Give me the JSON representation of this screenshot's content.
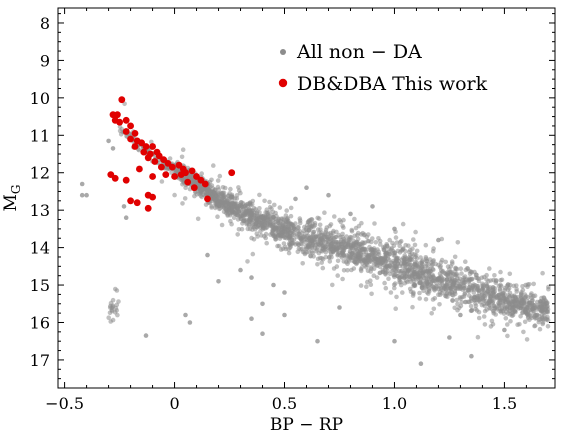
{
  "chart_data": {
    "type": "scatter",
    "title": "",
    "xlabel": "BP − RP",
    "ylabel_main": "M",
    "ylabel_sub": "G",
    "xlim": [
      -0.53,
      1.73
    ],
    "ylim": [
      7.6,
      17.75
    ],
    "y_inverted": true,
    "x_ticks": [
      -0.5,
      0,
      0.5,
      1.0,
      1.5
    ],
    "x_tick_labels": [
      "−0.5",
      "0",
      "0.5",
      "1.0",
      "1.5"
    ],
    "y_ticks": [
      8,
      9,
      10,
      11,
      12,
      13,
      14,
      15,
      16,
      17
    ],
    "y_tick_labels": [
      "8",
      "9",
      "10",
      "11",
      "12",
      "13",
      "14",
      "15",
      "16",
      "17"
    ],
    "grid": false,
    "legend_position": "top-right",
    "background_series": {
      "name": "All non − DA",
      "color": "#8c8c8c",
      "sequence_anchors": [
        [
          -0.25,
          10.8
        ],
        [
          -0.15,
          11.3
        ],
        [
          -0.05,
          11.75
        ],
        [
          0.05,
          12.1
        ],
        [
          0.15,
          12.5
        ],
        [
          0.25,
          12.9
        ],
        [
          0.4,
          13.3
        ],
        [
          0.55,
          13.65
        ],
        [
          0.7,
          13.9
        ],
        [
          0.85,
          14.15
        ],
        [
          1.0,
          14.45
        ],
        [
          1.15,
          14.75
        ],
        [
          1.3,
          15.05
        ],
        [
          1.45,
          15.3
        ],
        [
          1.6,
          15.55
        ],
        [
          1.7,
          15.7
        ]
      ],
      "sequence_widths": [
        0.15,
        0.15,
        0.15,
        0.2,
        0.25,
        0.3,
        0.35,
        0.4,
        0.42,
        0.45,
        0.48,
        0.5,
        0.5,
        0.45,
        0.4,
        0.35
      ],
      "points": [
        [
          -0.42,
          12.3
        ],
        [
          -0.42,
          12.6
        ],
        [
          -0.4,
          12.6
        ],
        [
          -0.28,
          11.35
        ],
        [
          -0.3,
          11.15
        ],
        [
          -0.23,
          12.9
        ],
        [
          -0.22,
          13.2
        ],
        [
          -0.13,
          16.35
        ],
        [
          0.05,
          15.8
        ],
        [
          0.07,
          16.0
        ],
        [
          0.2,
          14.9
        ],
        [
          0.35,
          15.9
        ],
        [
          0.4,
          15.5
        ],
        [
          0.45,
          15.0
        ],
        [
          0.4,
          16.3
        ],
        [
          0.5,
          15.2
        ],
        [
          0.65,
          16.5
        ],
        [
          0.75,
          15.6
        ],
        [
          1.0,
          16.5
        ],
        [
          1.12,
          17.1
        ],
        [
          1.35,
          16.9
        ],
        [
          1.25,
          16.4
        ],
        [
          1.5,
          16.2
        ],
        [
          0.7,
          12.6
        ],
        [
          0.8,
          13.1
        ],
        [
          0.55,
          12.7
        ],
        [
          0.6,
          12.4
        ],
        [
          0.35,
          14.8
        ],
        [
          0.5,
          15.8
        ],
        [
          1.3,
          15.8
        ],
        [
          1.45,
          15.7
        ],
        [
          0.15,
          14.2
        ],
        [
          0.3,
          14.6
        ],
        [
          0.9,
          12.9
        ],
        [
          1.0,
          13.5
        ],
        [
          1.2,
          13.8
        ]
      ]
    },
    "highlight_series": {
      "name": "DB&DBA This work",
      "color": "#e00000",
      "points": [
        [
          -0.24,
          10.05
        ],
        [
          -0.28,
          10.45
        ],
        [
          -0.27,
          10.6
        ],
        [
          -0.25,
          10.65
        ],
        [
          -0.22,
          10.6
        ],
        [
          -0.2,
          10.75
        ],
        [
          -0.22,
          10.9
        ],
        [
          -0.18,
          10.95
        ],
        [
          -0.2,
          11.1
        ],
        [
          -0.17,
          11.15
        ],
        [
          -0.15,
          11.2
        ],
        [
          -0.18,
          11.3
        ],
        [
          -0.13,
          11.3
        ],
        [
          -0.1,
          11.3
        ],
        [
          -0.14,
          11.45
        ],
        [
          -0.11,
          11.5
        ],
        [
          -0.08,
          11.45
        ],
        [
          -0.07,
          11.55
        ],
        [
          -0.09,
          11.7
        ],
        [
          -0.05,
          11.65
        ],
        [
          -0.03,
          11.75
        ],
        [
          -0.01,
          11.85
        ],
        [
          0.02,
          11.8
        ],
        [
          0.04,
          11.9
        ],
        [
          -0.16,
          11.9
        ],
        [
          -0.12,
          11.6
        ],
        [
          0.05,
          12.0
        ],
        [
          0.08,
          11.95
        ],
        [
          0.03,
          12.05
        ],
        [
          -0.06,
          11.85
        ],
        [
          -0.04,
          12.05
        ],
        [
          0.0,
          12.1
        ],
        [
          0.1,
          12.1
        ],
        [
          0.12,
          12.2
        ],
        [
          0.06,
          12.25
        ],
        [
          -0.1,
          12.1
        ],
        [
          -0.29,
          12.05
        ],
        [
          -0.27,
          12.15
        ],
        [
          -0.22,
          12.2
        ],
        [
          -0.12,
          12.6
        ],
        [
          -0.1,
          12.65
        ],
        [
          -0.2,
          12.75
        ],
        [
          -0.17,
          12.8
        ],
        [
          -0.12,
          12.95
        ],
        [
          0.09,
          12.4
        ],
        [
          0.15,
          12.7
        ],
        [
          0.26,
          12.0
        ],
        [
          0.14,
          12.3
        ],
        [
          -0.26,
          10.45
        ]
      ]
    }
  }
}
